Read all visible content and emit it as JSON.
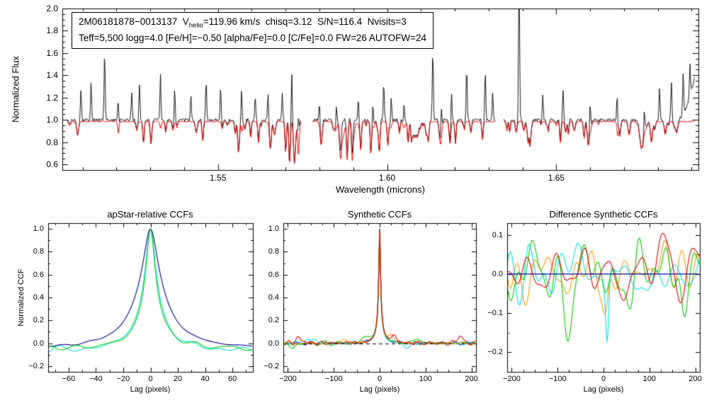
{
  "chart_data": [
    {
      "type": "line",
      "kind": "spectrum",
      "info": {
        "line1_prefix": "2M06181878−0013137  V",
        "line1_sub": "helio",
        "line1_suffix": "=119.96 km/s  chisq=3.12  S/N=116.4  Nvisits=3",
        "line2": "Teff=5,500 logg=4.0 [Fe/H]=−0.50 [alpha/Fe]=0.0 [C/Fe]=0.0 FW=26 AUTOFW=24"
      },
      "xlabel": "Wavelength (microns)",
      "ylabel": "Normalized Flux",
      "xlim": [
        1.504,
        1.692
      ],
      "ylim": [
        0.55,
        2.0
      ],
      "xticks": [
        {
          "v": 1.55,
          "t": "1.55"
        },
        {
          "v": 1.6,
          "t": "1.60"
        },
        {
          "v": 1.65,
          "t": "1.65"
        }
      ],
      "yticks": [
        {
          "v": 0.6,
          "t": "0.6"
        },
        {
          "v": 0.8,
          "t": "0.8"
        },
        {
          "v": 1.0,
          "t": "1.0"
        },
        {
          "v": 1.2,
          "t": "1.2"
        },
        {
          "v": 1.4,
          "t": "1.4"
        },
        {
          "v": 1.6,
          "t": "1.6"
        },
        {
          "v": 1.8,
          "t": "1.8"
        },
        {
          "v": 2.0,
          "t": "2.0"
        }
      ],
      "segments": [
        [
          1.5055,
          1.5745
        ],
        [
          1.578,
          1.632
        ],
        [
          1.6345,
          1.691
        ]
      ],
      "series": [
        {
          "name": "observed-spectrum",
          "color": "#000000"
        },
        {
          "name": "best-fit-model-spectrum",
          "color": "#ee0000"
        }
      ],
      "continuum": 1.0,
      "model_continuum": 0.985,
      "noise_amp": 0.013,
      "model_noise_amp": 0.006,
      "spike_width": 0.00022,
      "emission_spikes": [
        [
          1.5095,
          1.28
        ],
        [
          1.5125,
          1.35
        ],
        [
          1.5165,
          1.62
        ],
        [
          1.5205,
          1.28
        ],
        [
          1.5245,
          1.25
        ],
        [
          1.5268,
          1.32
        ],
        [
          1.533,
          1.47
        ],
        [
          1.5372,
          1.3
        ],
        [
          1.542,
          1.22
        ],
        [
          1.5465,
          1.36
        ],
        [
          1.5508,
          1.3
        ],
        [
          1.557,
          1.33
        ],
        [
          1.561,
          1.22
        ],
        [
          1.5648,
          1.26
        ],
        [
          1.569,
          1.24
        ],
        [
          1.5718,
          1.42
        ],
        [
          1.5738,
          1.35
        ],
        [
          1.58,
          1.2
        ],
        [
          1.585,
          1.18
        ],
        [
          1.5915,
          1.24
        ],
        [
          1.5958,
          1.2
        ],
        [
          1.599,
          1.33
        ],
        [
          1.6012,
          1.26
        ],
        [
          1.605,
          1.2
        ],
        [
          1.6135,
          1.63
        ],
        [
          1.616,
          1.26
        ],
        [
          1.619,
          1.3
        ],
        [
          1.6235,
          1.48
        ],
        [
          1.629,
          1.43
        ],
        [
          1.6312,
          1.25
        ],
        [
          1.639,
          2.4
        ],
        [
          1.646,
          1.22
        ],
        [
          1.652,
          1.28
        ],
        [
          1.66,
          1.24
        ],
        [
          1.668,
          1.32
        ],
        [
          1.676,
          1.22
        ],
        [
          1.6805,
          1.28
        ],
        [
          1.684,
          1.35
        ],
        [
          1.6875,
          1.38
        ],
        [
          1.6895,
          1.3
        ]
      ],
      "absorption_dips": [
        [
          1.528,
          0.8,
          0.0003
        ],
        [
          1.5455,
          0.82,
          0.0003
        ],
        [
          1.556,
          0.78,
          0.0003
        ],
        [
          1.562,
          0.8,
          0.0003
        ],
        [
          1.5655,
          0.75,
          0.0004
        ],
        [
          1.57,
          0.72,
          0.0003
        ],
        [
          1.5712,
          0.65,
          0.0003
        ],
        [
          1.5726,
          0.62,
          0.0004
        ],
        [
          1.5738,
          0.68,
          0.0003
        ],
        [
          1.5805,
          0.78,
          0.0004
        ],
        [
          1.5862,
          0.72,
          0.0004
        ],
        [
          1.5882,
          0.66,
          0.0003
        ],
        [
          1.5897,
          0.7,
          0.0003
        ],
        [
          1.5922,
          0.74,
          0.0003
        ],
        [
          1.5952,
          0.7,
          0.0003
        ],
        [
          1.5977,
          0.72,
          0.0003
        ],
        [
          1.6002,
          0.78,
          0.0003
        ],
        [
          1.6062,
          0.8,
          0.0003
        ],
        [
          1.6122,
          0.82,
          0.0003
        ],
        [
          1.6202,
          0.8,
          0.0003
        ],
        [
          1.6282,
          0.83,
          0.0003
        ],
        [
          1.6422,
          0.85,
          0.0003
        ],
        [
          1.6512,
          0.8,
          0.0003
        ],
        [
          1.6582,
          0.84,
          0.0003
        ],
        [
          1.6682,
          0.86,
          0.0003
        ],
        [
          1.6755,
          0.87,
          0.0012
        ],
        [
          1.6822,
          0.88,
          0.0004
        ]
      ],
      "model_only_dips": [
        [
          1.5868,
          0.85,
          0.0008
        ],
        [
          1.59,
          0.88,
          0.0006
        ]
      ]
    },
    {
      "type": "line",
      "kind": "ccf",
      "title": "apStar-relative CCFs",
      "xlabel": "Lag (pixels)",
      "ylabel": "Normalized CCF",
      "xlim": [
        -75,
        75
      ],
      "ylim": [
        -0.25,
        1.05
      ],
      "xticks": [
        {
          "v": -60,
          "t": "−60"
        },
        {
          "v": -40,
          "t": "−40"
        },
        {
          "v": -20,
          "t": "−20"
        },
        {
          "v": 0,
          "t": "0"
        },
        {
          "v": 20,
          "t": "20"
        },
        {
          "v": 40,
          "t": "40"
        },
        {
          "v": 60,
          "t": "60"
        }
      ],
      "yticks": [
        {
          "v": -0.2,
          "t": "−0.2"
        },
        {
          "v": 0.0,
          "t": "0.0"
        },
        {
          "v": 0.2,
          "t": "0.2"
        },
        {
          "v": 0.4,
          "t": "0.4"
        },
        {
          "v": 0.6,
          "t": "0.6"
        },
        {
          "v": 0.8,
          "t": "0.8"
        },
        {
          "v": 1.0,
          "t": "1.0"
        }
      ],
      "peak_lag": 0,
      "peak_value": 1.0,
      "series": [
        {
          "name": "visit-ccf-cyan",
          "color": "#00dfee",
          "core_amp": 0.66,
          "core_width": 4.2,
          "wing_amp": 0.42,
          "wing_width": 11,
          "offset": -0.07,
          "wiggle": 0.04,
          "seed": 22
        },
        {
          "name": "visit-ccf-blue",
          "color": "#000099",
          "core_amp": 0.5,
          "core_width": 6.0,
          "wing_amp": 0.55,
          "wing_width": 15,
          "offset": -0.05,
          "wiggle": 0.01,
          "seed": 33
        },
        {
          "name": "visit-ccf-green",
          "color": "#00cc00",
          "core_amp": 0.7,
          "core_width": 3.8,
          "wing_amp": 0.37,
          "wing_width": 10,
          "offset": -0.05,
          "wiggle": 0.03,
          "seed": 11
        }
      ]
    },
    {
      "type": "line",
      "kind": "ccf",
      "title": "Synthetic CCFs",
      "xlabel": "Lag (pixels)",
      "xlim": [
        -210,
        210
      ],
      "ylim": [
        -0.25,
        1.05
      ],
      "xticks": [
        {
          "v": -200,
          "t": "−200"
        },
        {
          "v": -100,
          "t": "−100"
        },
        {
          "v": 0,
          "t": "0"
        },
        {
          "v": 100,
          "t": "100"
        },
        {
          "v": 200,
          "t": "200"
        }
      ],
      "yticks": [
        {
          "v": -0.2,
          "t": "−0.2"
        },
        {
          "v": 0.0,
          "t": "0.0"
        },
        {
          "v": 0.2,
          "t": "0.2"
        },
        {
          "v": 0.4,
          "t": "0.4"
        },
        {
          "v": 0.6,
          "t": "0.6"
        },
        {
          "v": 0.8,
          "t": "0.8"
        },
        {
          "v": 1.0,
          "t": "1.0"
        }
      ],
      "zero_line": {
        "style": "dashed",
        "color": "#000000"
      },
      "peak_lag": 0,
      "peak_value": 1.0,
      "series": [
        {
          "name": "syn-ccf-navy",
          "color": "#000099",
          "peak": 1.0,
          "seed": 44,
          "wiggle": 0.008,
          "events": []
        },
        {
          "name": "syn-ccf-cyan",
          "color": "#00dfee",
          "peak": 0.85,
          "seed": 45,
          "wiggle": 0.012,
          "events": [
            [
              -150,
              12,
              0.04
            ],
            [
              60,
              10,
              -0.04
            ]
          ]
        },
        {
          "name": "syn-ccf-green",
          "color": "#00cc00",
          "peak": 1.0,
          "seed": 42,
          "wiggle": 0.013,
          "events": [
            [
              -30,
              12,
              0.05
            ],
            [
              80,
              10,
              0.04
            ],
            [
              -190,
              8,
              -0.05
            ]
          ]
        },
        {
          "name": "syn-ccf-orange",
          "color": "#ff9900",
          "peak": 0.97,
          "seed": 43,
          "wiggle": 0.012,
          "events": [
            [
              25,
              8,
              0.05
            ],
            [
              -80,
              10,
              0.03
            ]
          ]
        },
        {
          "name": "syn-ccf-red",
          "color": "#dd0000",
          "peak": 1.0,
          "seed": 41,
          "wiggle": 0.013,
          "events": [
            [
              -175,
              12,
              0.04
            ],
            [
              30,
              10,
              0.05
            ],
            [
              175,
              10,
              0.06
            ]
          ]
        }
      ]
    },
    {
      "type": "line",
      "kind": "ccf-difference",
      "title": "Difference Synthetic CCFs",
      "xlabel": "Lag (pixels)",
      "xlim": [
        -210,
        210
      ],
      "ylim": [
        -0.25,
        0.13
      ],
      "xticks": [
        {
          "v": -200,
          "t": "−200"
        },
        {
          "v": -100,
          "t": "−100"
        },
        {
          "v": 0,
          "t": "0"
        },
        {
          "v": 100,
          "t": "100"
        },
        {
          "v": 200,
          "t": "200"
        }
      ],
      "yticks": [
        {
          "v": -0.2,
          "t": "−0.2"
        },
        {
          "v": -0.1,
          "t": "−0.1"
        },
        {
          "v": 0.0,
          "t": "0.0"
        },
        {
          "v": 0.1,
          "t": "0.1"
        }
      ],
      "series": [
        {
          "name": "diff-orange",
          "color": "#ff9900",
          "amp": 0.045,
          "seed": 53,
          "events": [
            [
              5,
              8,
              -0.1
            ],
            [
              130,
              18,
              0.06
            ]
          ]
        },
        {
          "name": "diff-cyan",
          "color": "#00dfee",
          "amp": 0.05,
          "seed": 54,
          "events": [
            [
              8,
              5,
              -0.18
            ],
            [
              -60,
              20,
              0.05
            ],
            [
              100,
              15,
              -0.06
            ]
          ]
        },
        {
          "name": "diff-green",
          "color": "#00cc00",
          "amp": 0.055,
          "seed": 52,
          "events": [
            [
              -75,
              12,
              -0.1
            ],
            [
              140,
              12,
              0.08
            ],
            [
              175,
              10,
              -0.09
            ],
            [
              60,
              12,
              -0.05
            ]
          ]
        },
        {
          "name": "diff-red",
          "color": "#dd0000",
          "amp": 0.05,
          "seed": 51,
          "events": [
            [
              130,
              20,
              0.07
            ],
            [
              -40,
              15,
              0.04
            ],
            [
              25,
              10,
              -0.05
            ]
          ]
        },
        {
          "name": "diff-navy",
          "color": "#000099",
          "amp": 0.0,
          "seed": 55,
          "events": []
        }
      ]
    }
  ]
}
